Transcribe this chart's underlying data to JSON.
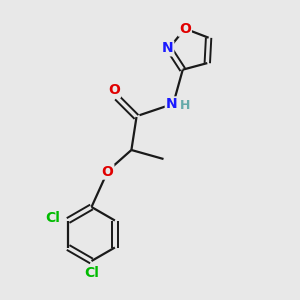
{
  "bg_color": "#e8e8e8",
  "bond_color": "#1a1a1a",
  "atom_colors": {
    "O": "#e00000",
    "N": "#1a1aff",
    "Cl": "#00bb00",
    "H": "#66aaaa"
  },
  "figsize": [
    3.0,
    3.0
  ],
  "dpi": 100,
  "xlim": [
    0,
    10
  ],
  "ylim": [
    0,
    10
  ]
}
